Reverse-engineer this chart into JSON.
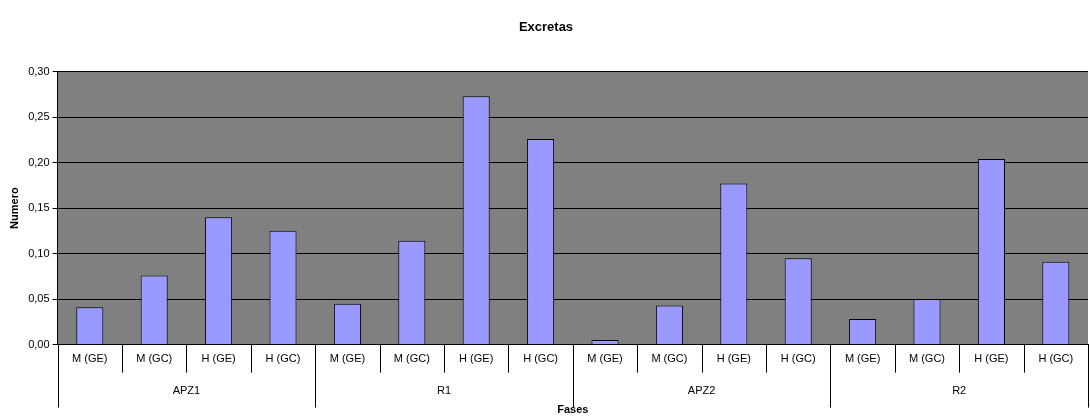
{
  "chart_data": {
    "type": "bar",
    "title": "Excretas",
    "xlabel": "Fases",
    "ylabel": "Numero",
    "categories": [
      "M (GE)",
      "M (GC)",
      "H (GE)",
      "H (GC)",
      "M (GE)",
      "M (GC)",
      "H (GE)",
      "H (GC)",
      "M (GE)",
      "M (GC)",
      "H (GE)",
      "H (GC)",
      "M (GE)",
      "M (GC)",
      "H (GE)",
      "H (GC)"
    ],
    "values": [
      0.041,
      0.076,
      0.14,
      0.125,
      0.045,
      0.114,
      0.273,
      0.226,
      0.005,
      0.043,
      0.177,
      0.095,
      0.028,
      0.05,
      0.204,
      0.091
    ],
    "color": "#9999ff",
    "annotations": [
      "APZ1",
      "R1",
      "APZ2",
      "R2"
    ],
    "ylim": [
      0,
      0.3
    ],
    "yticks": [
      {
        "value": 0,
        "label": "0,00"
      },
      {
        "value": 0.05,
        "label": "0,05"
      },
      {
        "value": 0.1,
        "label": "0,10"
      },
      {
        "value": 0.15,
        "label": "0,15"
      },
      {
        "value": 0.2,
        "label": "0,20"
      },
      {
        "value": 0.25,
        "label": "0,25"
      },
      {
        "value": 0.3,
        "label": "0,30"
      }
    ],
    "grid": "y",
    "legend": false
  }
}
